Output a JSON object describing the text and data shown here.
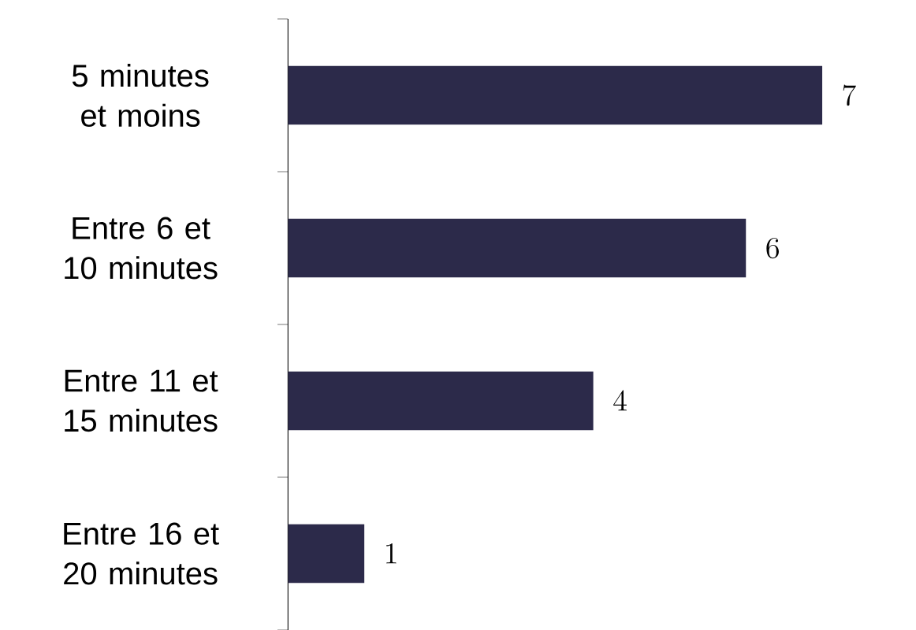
{
  "chart_data": {
    "type": "bar",
    "orientation": "horizontal",
    "categories": [
      "5 minutes et moins",
      "Entre 6 et 10 minutes",
      "Entre 11 et 15 minutes",
      "Entre 16 et 20 minutes"
    ],
    "values": [
      7,
      6,
      4,
      1
    ],
    "color": "#2c2a4a",
    "data_labels": true
  }
}
